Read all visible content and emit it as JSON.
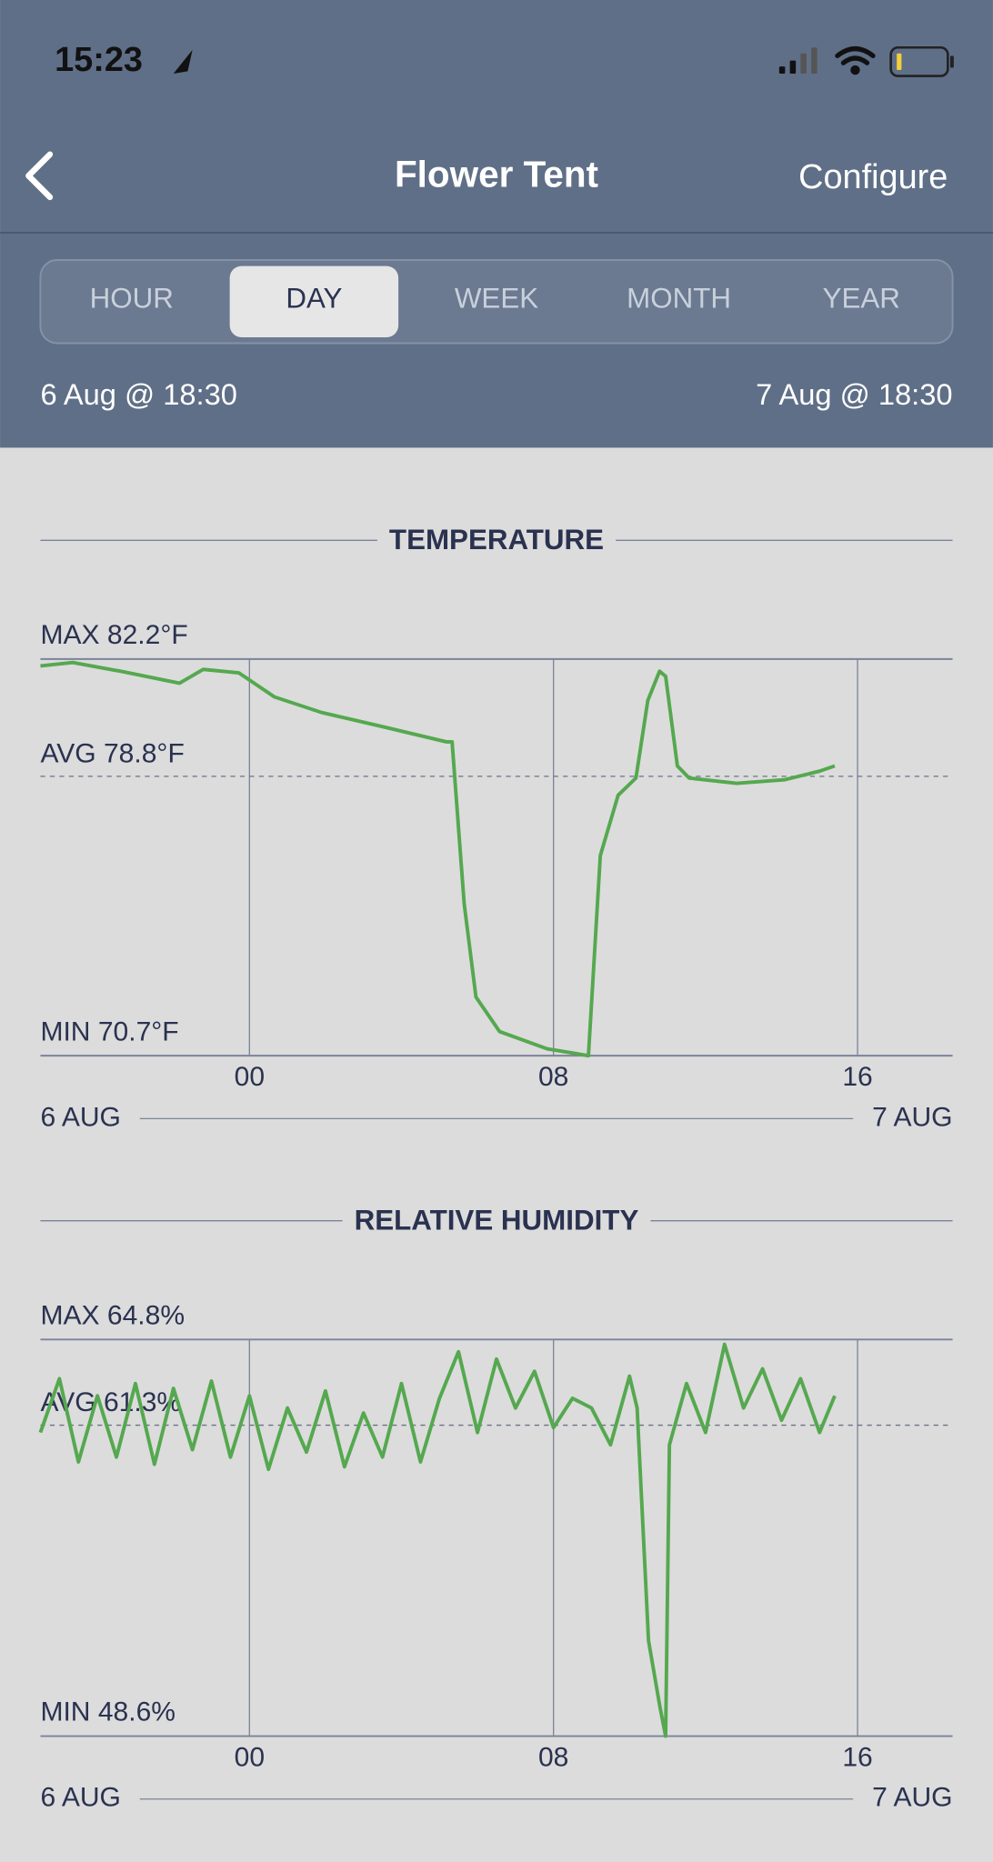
{
  "status_bar": {
    "time": "15:23"
  },
  "nav": {
    "title": "Flower Tent",
    "action": "Configure"
  },
  "tabs": {
    "items": [
      "HOUR",
      "DAY",
      "WEEK",
      "MONTH",
      "YEAR"
    ],
    "selected": 1
  },
  "range": {
    "start": "6 Aug @ 18:30",
    "end": "7 Aug @ 18:30"
  },
  "chart_data": [
    {
      "type": "line",
      "title": "TEMPERATURE",
      "x": [
        -5.5,
        -4.65,
        -3.4,
        -1.84,
        -1.22,
        -0.28,
        0.66,
        1.9,
        3.46,
        5.18,
        5.33,
        5.65,
        5.96,
        6.58,
        7.83,
        8.92,
        9.23,
        9.7,
        10.17,
        10.48,
        10.79,
        10.95,
        11.26,
        11.57,
        12.82,
        14.07,
        15.0,
        15.4
      ],
      "series": [
        {
          "color": "#55a84f",
          "values": [
            82.0,
            82.1,
            81.85,
            81.5,
            81.9,
            81.8,
            81.1,
            80.65,
            80.25,
            79.8,
            79.8,
            75.1,
            72.4,
            71.4,
            70.9,
            70.7,
            76.5,
            78.25,
            78.75,
            81.0,
            81.85,
            81.7,
            79.1,
            78.75,
            78.6,
            78.7,
            78.95,
            79.1
          ]
        }
      ],
      "xlim": [
        -5.5,
        18.5
      ],
      "xticks": [
        {
          "value": 0,
          "label": "00"
        },
        {
          "value": 8,
          "label": "08"
        },
        16
      ],
      "ylim": [
        70.7,
        82.2
      ],
      "yticks": [
        {
          "value": 82.2,
          "label": "MAX 82.2°F"
        },
        {
          "value": 70.7,
          "label": "MIN 70.7°F"
        }
      ],
      "average": {
        "value": 78.8,
        "label": "AVG 78.8°F"
      },
      "x_start_label": "6 AUG",
      "x_end_label": "7 AUG",
      "grid": true
    },
    {
      "type": "line",
      "title": "RELATIVE HUMIDITY",
      "x": [
        -5.5,
        -5,
        -4.5,
        -4,
        -3.5,
        -3,
        -2.5,
        -2,
        -1.5,
        -1,
        -0.5,
        0,
        0.5,
        1,
        1.5,
        2,
        2.5,
        3,
        3.5,
        4,
        4.5,
        5,
        5.5,
        6,
        6.5,
        7,
        7.5,
        8,
        8.5,
        9,
        9.5,
        10,
        10.2,
        10.5,
        10.8,
        10.95,
        11.05,
        11.5,
        12,
        12.5,
        13,
        13.5,
        14,
        14.5,
        15,
        15.4
      ],
      "series": [
        {
          "color": "#55a84f",
          "values": [
            61.0,
            63.2,
            59.8,
            62.5,
            60.0,
            63.0,
            59.7,
            62.8,
            60.3,
            63.1,
            60.0,
            62.5,
            59.5,
            62.0,
            60.2,
            62.7,
            59.6,
            61.8,
            60.0,
            63.0,
            59.8,
            62.4,
            64.3,
            61.0,
            64.0,
            62.0,
            63.5,
            61.2,
            62.4,
            62.0,
            60.5,
            63.3,
            62.0,
            52.5,
            49.8,
            48.6,
            60.5,
            63.0,
            61.0,
            64.6,
            62.0,
            63.6,
            61.5,
            63.2,
            61.0,
            62.5
          ]
        }
      ],
      "xlim": [
        -5.5,
        18.5
      ],
      "xticks": [
        {
          "value": 0,
          "label": "00"
        },
        {
          "value": 8,
          "label": "08"
        },
        16
      ],
      "ylim": [
        48.6,
        64.8
      ],
      "yticks": [
        {
          "value": 64.8,
          "label": "MAX 64.8%"
        },
        {
          "value": 48.6,
          "label": "MIN 48.6%"
        }
      ],
      "average": {
        "value": 61.3,
        "label": "AVG 61.3%"
      },
      "x_start_label": "6 AUG",
      "x_end_label": "7 AUG",
      "grid": true
    }
  ]
}
